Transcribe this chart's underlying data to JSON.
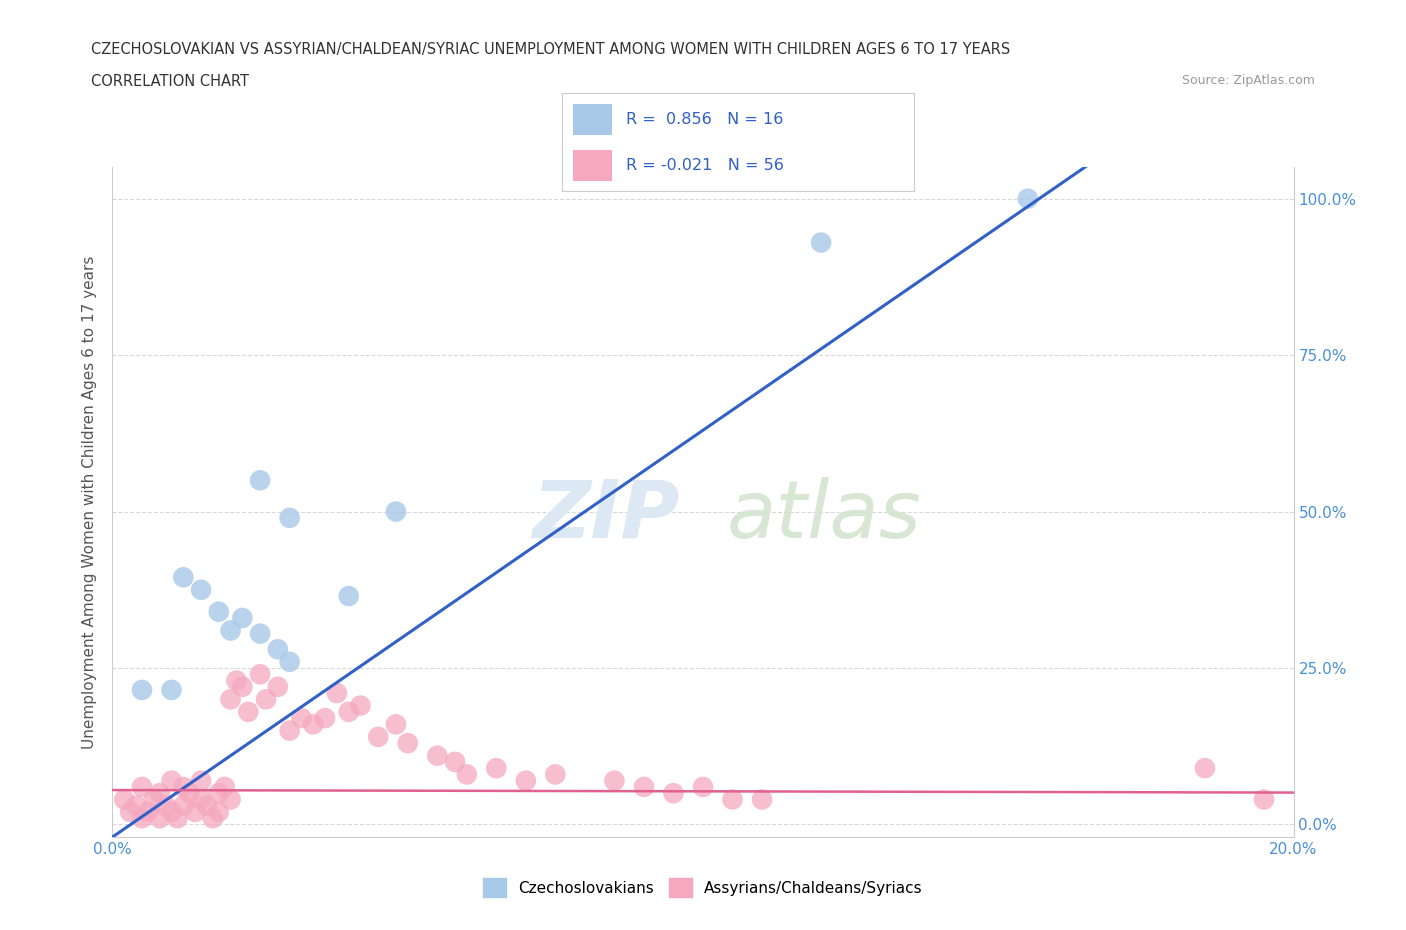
{
  "title_line1": "CZECHOSLOVAKIAN VS ASSYRIAN/CHALDEAN/SYRIAC UNEMPLOYMENT AMONG WOMEN WITH CHILDREN AGES 6 TO 17 YEARS",
  "title_line2": "CORRELATION CHART",
  "source_text": "Source: ZipAtlas.com",
  "ylabel": "Unemployment Among Women with Children Ages 6 to 17 years",
  "xlim": [
    0.0,
    0.2
  ],
  "ylim": [
    -0.02,
    1.05
  ],
  "xtick_vals": [
    0.0,
    0.05,
    0.1,
    0.15,
    0.2
  ],
  "xtick_labels": [
    "0.0%",
    "",
    "",
    "",
    "20.0%"
  ],
  "ytick_vals": [
    0.0,
    0.25,
    0.5,
    0.75,
    1.0
  ],
  "right_ytick_labels": [
    "0.0%",
    "25.0%",
    "50.0%",
    "75.0%",
    "100.0%"
  ],
  "blue_color": "#a8c8e8",
  "pink_color": "#f5a8c0",
  "blue_line_color": "#3060c8",
  "pink_line_color": "#e06090",
  "legend_label_blue": "Czechoslovakians",
  "legend_label_pink": "Assyrians/Chaldeans/Syriacs",
  "blue_scatter_x": [
    0.005,
    0.01,
    0.012,
    0.015,
    0.018,
    0.02,
    0.022,
    0.025,
    0.028,
    0.03,
    0.025,
    0.03,
    0.04,
    0.048,
    0.12,
    0.155
  ],
  "blue_scatter_y": [
    0.215,
    0.215,
    0.395,
    0.375,
    0.34,
    0.31,
    0.33,
    0.305,
    0.28,
    0.26,
    0.55,
    0.49,
    0.365,
    0.5,
    0.93,
    1.0
  ],
  "pink_scatter_x": [
    0.002,
    0.003,
    0.004,
    0.005,
    0.005,
    0.006,
    0.007,
    0.008,
    0.008,
    0.009,
    0.01,
    0.01,
    0.011,
    0.012,
    0.012,
    0.013,
    0.014,
    0.015,
    0.015,
    0.016,
    0.017,
    0.018,
    0.018,
    0.019,
    0.02,
    0.02,
    0.021,
    0.022,
    0.023,
    0.025,
    0.026,
    0.028,
    0.03,
    0.032,
    0.034,
    0.036,
    0.038,
    0.04,
    0.042,
    0.045,
    0.048,
    0.05,
    0.055,
    0.058,
    0.06,
    0.065,
    0.07,
    0.075,
    0.085,
    0.09,
    0.095,
    0.1,
    0.105,
    0.11,
    0.185,
    0.195
  ],
  "pink_scatter_y": [
    0.04,
    0.02,
    0.03,
    0.01,
    0.06,
    0.02,
    0.04,
    0.01,
    0.05,
    0.03,
    0.02,
    0.07,
    0.01,
    0.03,
    0.06,
    0.05,
    0.02,
    0.04,
    0.07,
    0.03,
    0.01,
    0.05,
    0.02,
    0.06,
    0.04,
    0.2,
    0.23,
    0.22,
    0.18,
    0.24,
    0.2,
    0.22,
    0.15,
    0.17,
    0.16,
    0.17,
    0.21,
    0.18,
    0.19,
    0.14,
    0.16,
    0.13,
    0.11,
    0.1,
    0.08,
    0.09,
    0.07,
    0.08,
    0.07,
    0.06,
    0.05,
    0.06,
    0.04,
    0.04,
    0.09,
    0.04
  ],
  "background_color": "#ffffff",
  "grid_color": "#d8d8d8"
}
